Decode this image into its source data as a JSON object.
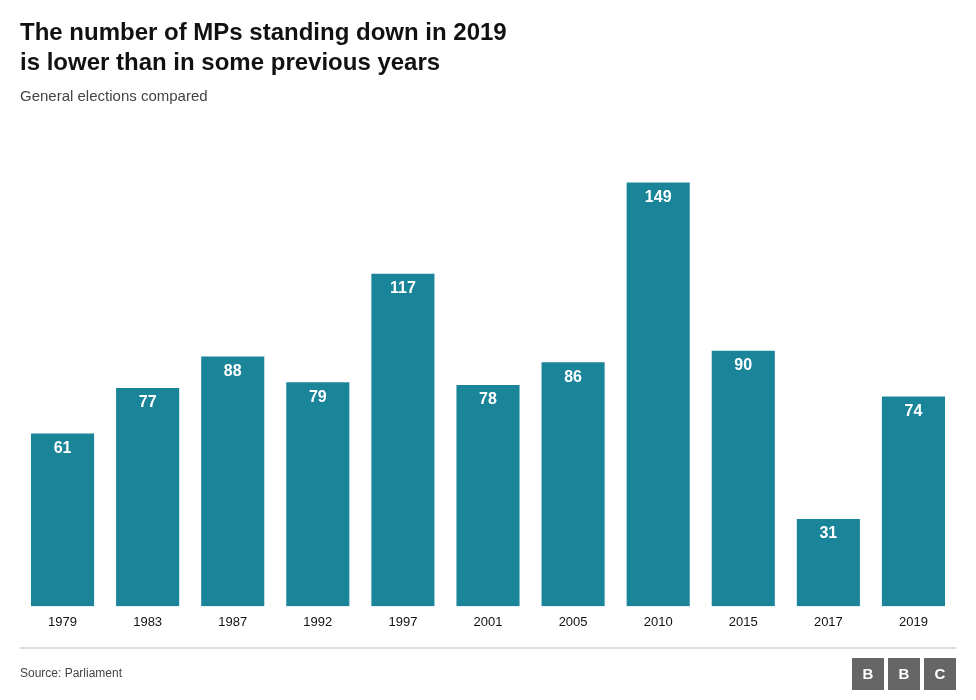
{
  "chart_data": {
    "type": "bar",
    "title": [
      "The number of MPs standing down in 2019",
      "is lower than in some previous years"
    ],
    "subtitle": "General elections compared",
    "source": "Source: Parliament",
    "logo": "BBC",
    "categories": [
      "1979",
      "1983",
      "1987",
      "1992",
      "1997",
      "2001",
      "2005",
      "2010",
      "2015",
      "2017",
      "2019"
    ],
    "values": [
      61,
      77,
      88,
      79,
      117,
      78,
      86,
      149,
      90,
      31,
      74
    ],
    "color": "#1a8499",
    "ylim": [
      0,
      165
    ],
    "grid": false,
    "data_labels": true,
    "tick_labels": "x"
  }
}
